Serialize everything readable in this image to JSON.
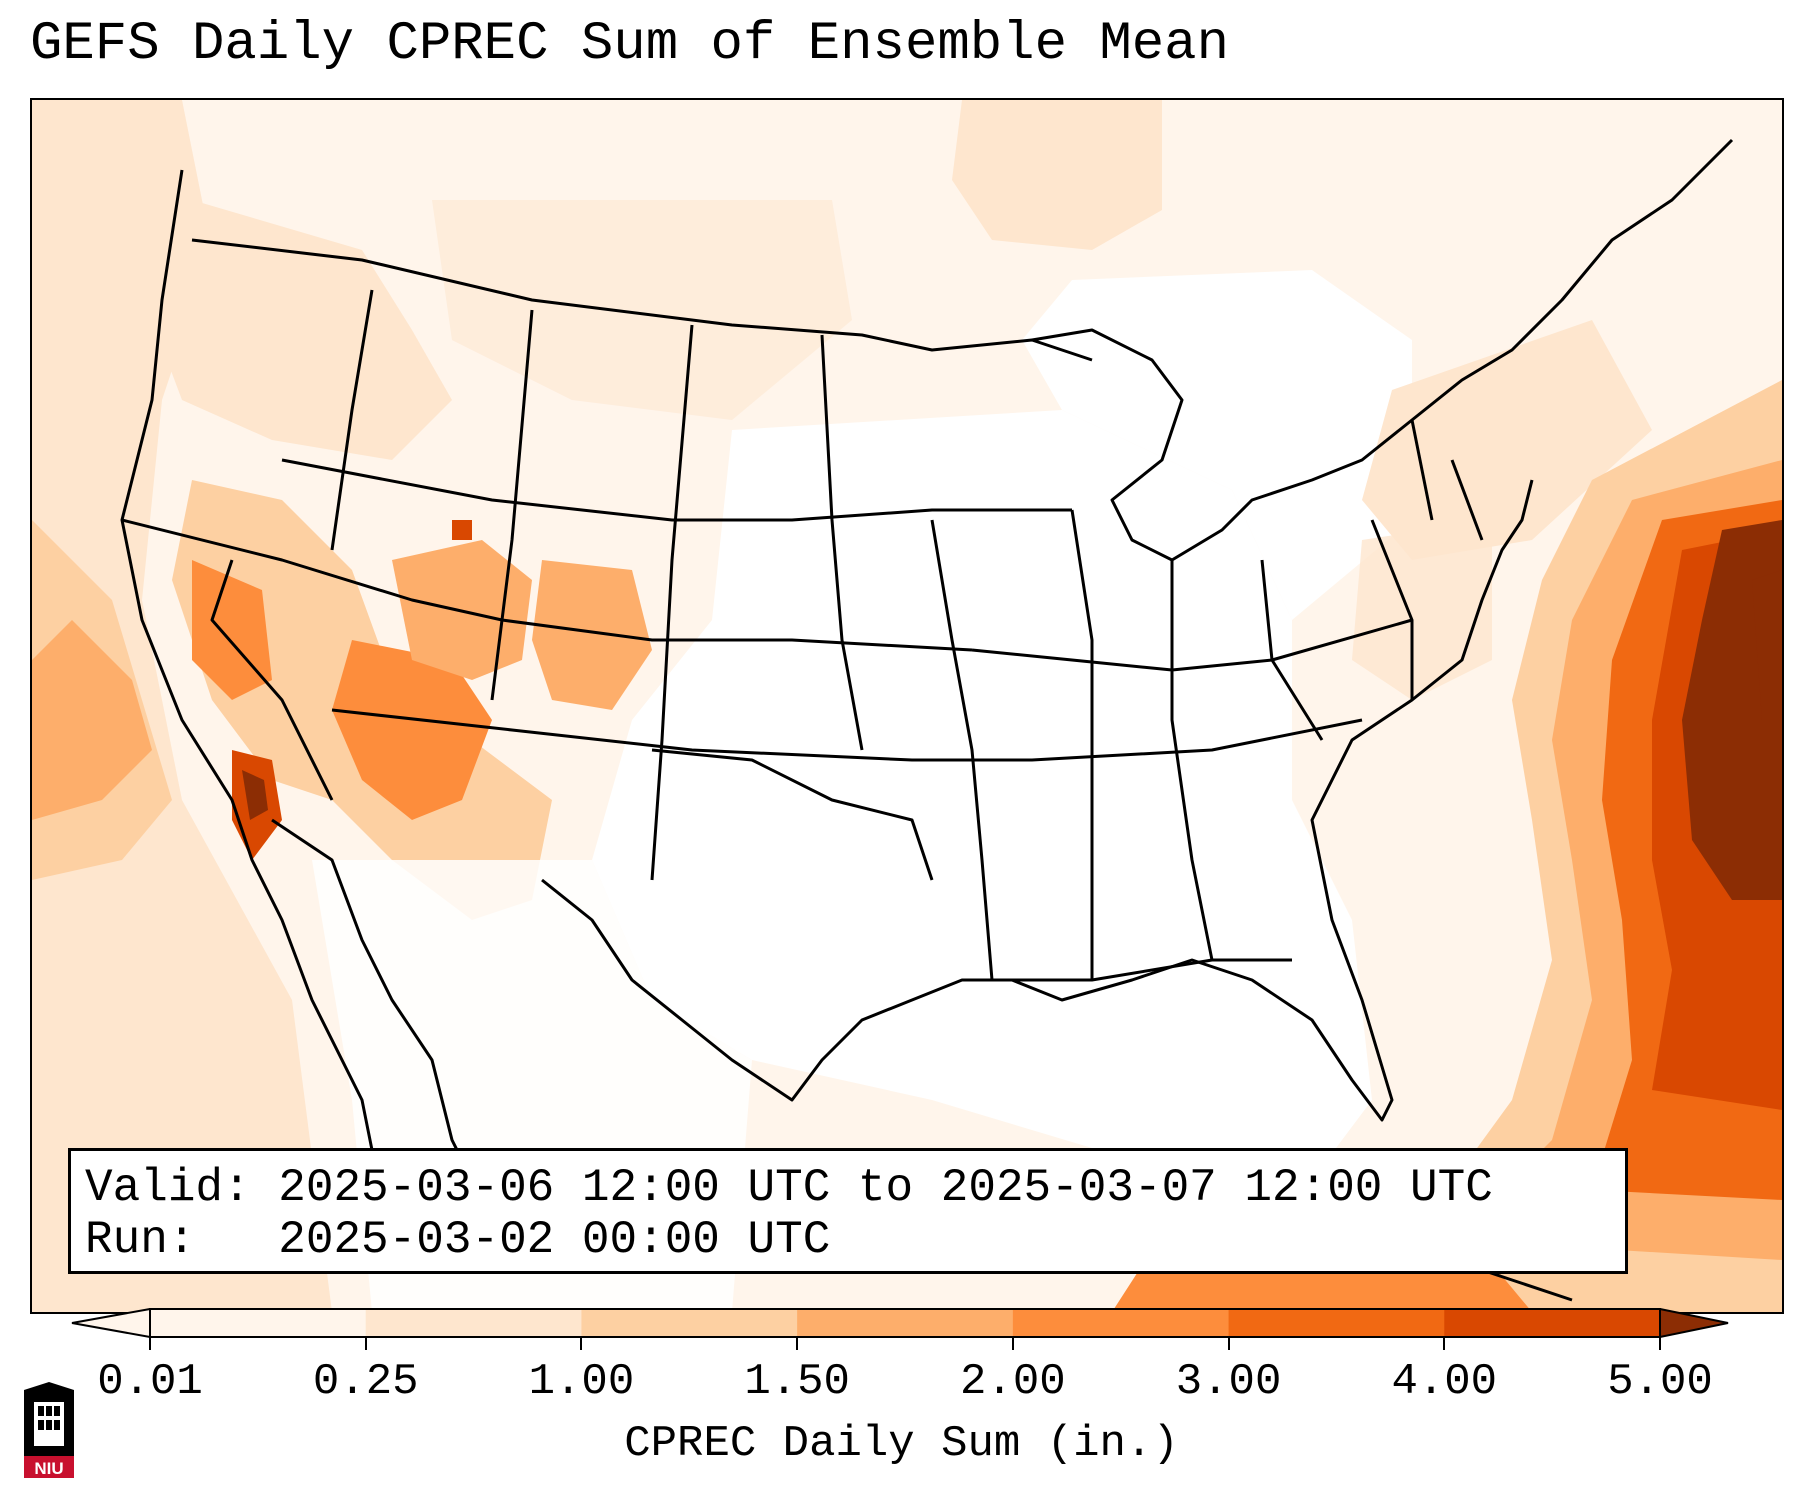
{
  "title": "GEFS Daily CPREC Sum of Ensemble Mean",
  "info": {
    "valid_line": "Valid: 2025-03-06 12:00 UTC to 2025-03-07 12:00 UTC",
    "run_line": "Run:   2025-03-02 00:00 UTC"
  },
  "colorbar": {
    "label": "CPREC Daily Sum (in.)",
    "ticks": [
      "0.01",
      "0.25",
      "1.00",
      "1.50",
      "2.00",
      "3.00",
      "4.00",
      "5.00"
    ],
    "colors": [
      "#fff5eb",
      "#fee6ce",
      "#fdd0a2",
      "#fdae6b",
      "#fd8d3c",
      "#f16913",
      "#d94801",
      "#8c2d04"
    ],
    "extend": "both"
  },
  "logo": {
    "text": "NIU",
    "colors": {
      "red": "#c8102e",
      "black": "#000000"
    }
  },
  "legend_colors": {
    "trace": "#fff5eb",
    "light": "#fee6ce",
    "moderate": "#fdd0a2",
    "heavy": "#fd8d3c",
    "very_heavy": "#d94801",
    "extreme": "#8c2d04"
  }
}
